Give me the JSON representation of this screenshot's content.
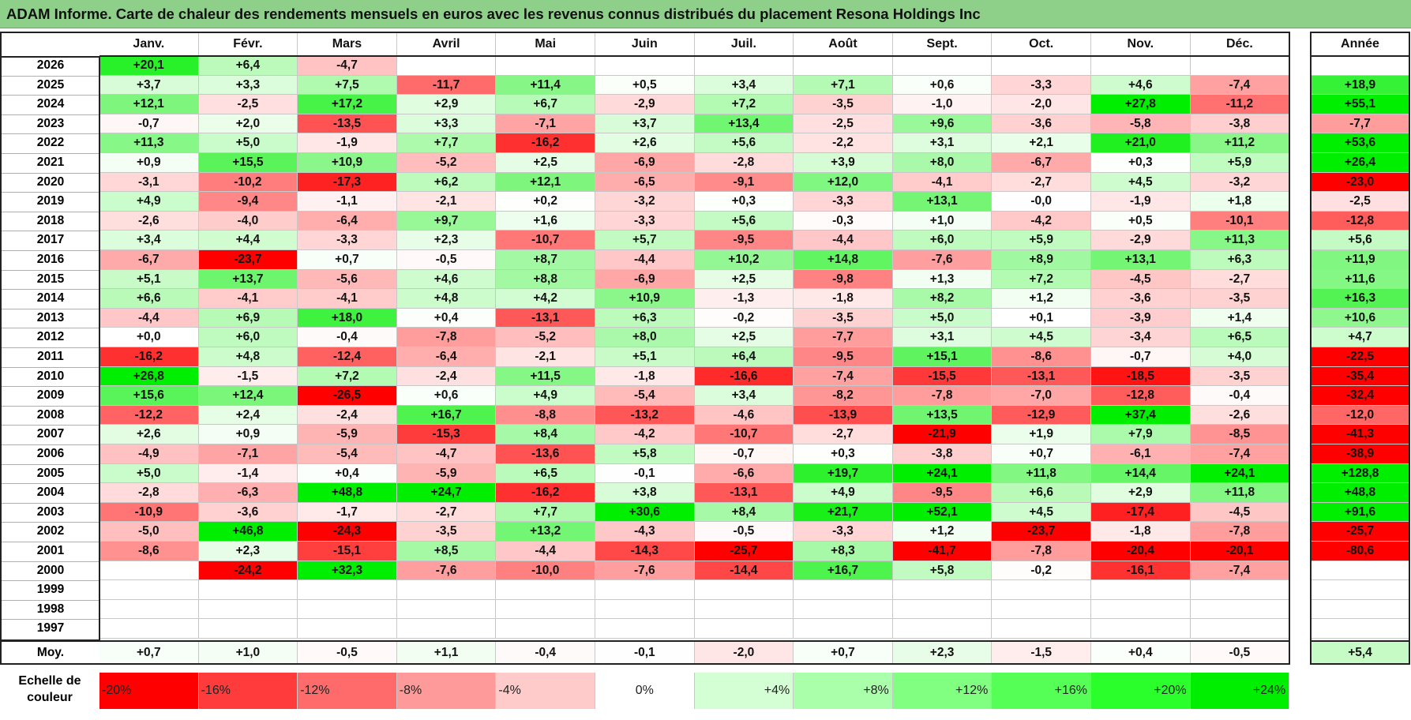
{
  "title": "ADAM Informe. Carte de chaleur des rendements mensuels en euros avec les revenus connus distribués du placement Resona Holdings Inc",
  "chart_data": {
    "type": "heatmap",
    "title": "ADAM Informe. Carte de chaleur des rendements mensuels en euros avec les revenus connus distribués du placement Resona Holdings Inc",
    "columns": [
      "Janv.",
      "Févr.",
      "Mars",
      "Avril",
      "Mai",
      "Juin",
      "Juil.",
      "Août",
      "Sept.",
      "Oct.",
      "Nov.",
      "Déc."
    ],
    "year_column_label": "Année",
    "rows": [
      {
        "year": "2026",
        "values": [
          "+20,1",
          "+6,4",
          "-4,7",
          "",
          "",
          "",
          "",
          "",
          "",
          "",
          "",
          ""
        ],
        "annual": ""
      },
      {
        "year": "2025",
        "values": [
          "+3,7",
          "+3,3",
          "+7,5",
          "-11,7",
          "+11,4",
          "+0,5",
          "+3,4",
          "+7,1",
          "+0,6",
          "-3,3",
          "+4,6",
          "-7,4"
        ],
        "annual": "+18,9"
      },
      {
        "year": "2024",
        "values": [
          "+12,1",
          "-2,5",
          "+17,2",
          "+2,9",
          "+6,7",
          "-2,9",
          "+7,2",
          "-3,5",
          "-1,0",
          "-2,0",
          "+27,8",
          "-11,2"
        ],
        "annual": "+55,1"
      },
      {
        "year": "2023",
        "values": [
          "-0,7",
          "+2,0",
          "-13,5",
          "+3,3",
          "-7,1",
          "+3,7",
          "+13,4",
          "-2,5",
          "+9,6",
          "-3,6",
          "-5,8",
          "-3,8"
        ],
        "annual": "-7,7"
      },
      {
        "year": "2022",
        "values": [
          "+11,3",
          "+5,0",
          "-1,9",
          "+7,7",
          "-16,2",
          "+2,6",
          "+5,6",
          "-2,2",
          "+3,1",
          "+2,1",
          "+21,0",
          "+11,2"
        ],
        "annual": "+53,6"
      },
      {
        "year": "2021",
        "values": [
          "+0,9",
          "+15,5",
          "+10,9",
          "-5,2",
          "+2,5",
          "-6,9",
          "-2,8",
          "+3,9",
          "+8,0",
          "-6,7",
          "+0,3",
          "+5,9"
        ],
        "annual": "+26,4"
      },
      {
        "year": "2020",
        "values": [
          "-3,1",
          "-10,2",
          "-17,3",
          "+6,2",
          "+12,1",
          "-6,5",
          "-9,1",
          "+12,0",
          "-4,1",
          "-2,7",
          "+4,5",
          "-3,2"
        ],
        "annual": "-23,0"
      },
      {
        "year": "2019",
        "values": [
          "+4,9",
          "-9,4",
          "-1,1",
          "-2,1",
          "+0,2",
          "-3,2",
          "+0,3",
          "-3,3",
          "+13,1",
          "-0,0",
          "-1,9",
          "+1,8"
        ],
        "annual": "-2,5"
      },
      {
        "year": "2018",
        "values": [
          "-2,6",
          "-4,0",
          "-6,4",
          "+9,7",
          "+1,6",
          "-3,3",
          "+5,6",
          "-0,3",
          "+1,0",
          "-4,2",
          "+0,5",
          "-10,1"
        ],
        "annual": "-12,8"
      },
      {
        "year": "2017",
        "values": [
          "+3,4",
          "+4,4",
          "-3,3",
          "+2,3",
          "-10,7",
          "+5,7",
          "-9,5",
          "-4,4",
          "+6,0",
          "+5,9",
          "-2,9",
          "+11,3"
        ],
        "annual": "+5,6"
      },
      {
        "year": "2016",
        "values": [
          "-6,7",
          "-23,7",
          "+0,7",
          "-0,5",
          "+8,7",
          "-4,4",
          "+10,2",
          "+14,8",
          "-7,6",
          "+8,9",
          "+13,1",
          "+6,3"
        ],
        "annual": "+11,9"
      },
      {
        "year": "2015",
        "values": [
          "+5,1",
          "+13,7",
          "-5,6",
          "+4,6",
          "+8,8",
          "-6,9",
          "+2,5",
          "-9,8",
          "+1,3",
          "+7,2",
          "-4,5",
          "-2,7"
        ],
        "annual": "+11,6"
      },
      {
        "year": "2014",
        "values": [
          "+6,6",
          "-4,1",
          "-4,1",
          "+4,8",
          "+4,2",
          "+10,9",
          "-1,3",
          "-1,8",
          "+8,2",
          "+1,2",
          "-3,6",
          "-3,5"
        ],
        "annual": "+16,3"
      },
      {
        "year": "2013",
        "values": [
          "-4,4",
          "+6,9",
          "+18,0",
          "+0,4",
          "-13,1",
          "+6,3",
          "-0,2",
          "-3,5",
          "+5,0",
          "+0,1",
          "-3,9",
          "+1,4"
        ],
        "annual": "+10,6"
      },
      {
        "year": "2012",
        "values": [
          "+0,0",
          "+6,0",
          "-0,4",
          "-7,8",
          "-5,2",
          "+8,0",
          "+2,5",
          "-7,7",
          "+3,1",
          "+4,5",
          "-3,4",
          "+6,5"
        ],
        "annual": "+4,7"
      },
      {
        "year": "2011",
        "values": [
          "-16,2",
          "+4,8",
          "-12,4",
          "-6,4",
          "-2,1",
          "+5,1",
          "+6,4",
          "-9,5",
          "+15,1",
          "-8,6",
          "-0,7",
          "+4,0"
        ],
        "annual": "-22,5"
      },
      {
        "year": "2010",
        "values": [
          "+26,8",
          "-1,5",
          "+7,2",
          "-2,4",
          "+11,5",
          "-1,8",
          "-16,6",
          "-7,4",
          "-15,5",
          "-13,1",
          "-18,5",
          "-3,5"
        ],
        "annual": "-35,4"
      },
      {
        "year": "2009",
        "values": [
          "+15,6",
          "+12,4",
          "-26,5",
          "+0,6",
          "+4,9",
          "-5,4",
          "+3,4",
          "-8,2",
          "-7,8",
          "-7,0",
          "-12,8",
          "-0,4"
        ],
        "annual": "-32,4"
      },
      {
        "year": "2008",
        "values": [
          "-12,2",
          "+2,4",
          "-2,4",
          "+16,7",
          "-8,8",
          "-13,2",
          "-4,6",
          "-13,9",
          "+13,5",
          "-12,9",
          "+37,4",
          "-2,6"
        ],
        "annual": "-12,0"
      },
      {
        "year": "2007",
        "values": [
          "+2,6",
          "+0,9",
          "-5,9",
          "-15,3",
          "+8,4",
          "-4,2",
          "-10,7",
          "-2,7",
          "-21,9",
          "+1,9",
          "+7,9",
          "-8,5"
        ],
        "annual": "-41,3"
      },
      {
        "year": "2006",
        "values": [
          "-4,9",
          "-7,1",
          "-5,4",
          "-4,7",
          "-13,6",
          "+5,8",
          "-0,7",
          "+0,3",
          "-3,8",
          "+0,7",
          "-6,1",
          "-7,4"
        ],
        "annual": "-38,9"
      },
      {
        "year": "2005",
        "values": [
          "+5,0",
          "-1,4",
          "+0,4",
          "-5,9",
          "+6,5",
          "-0,1",
          "-6,6",
          "+19,7",
          "+24,1",
          "+11,8",
          "+14,4",
          "+24,1"
        ],
        "annual": "+128,8"
      },
      {
        "year": "2004",
        "values": [
          "-2,8",
          "-6,3",
          "+48,8",
          "+24,7",
          "-16,2",
          "+3,8",
          "-13,1",
          "+4,9",
          "-9,5",
          "+6,6",
          "+2,9",
          "+11,8"
        ],
        "annual": "+48,8"
      },
      {
        "year": "2003",
        "values": [
          "-10,9",
          "-3,6",
          "-1,7",
          "-2,7",
          "+7,7",
          "+30,6",
          "+8,4",
          "+21,7",
          "+52,1",
          "+4,5",
          "-17,4",
          "-4,5"
        ],
        "annual": "+91,6"
      },
      {
        "year": "2002",
        "values": [
          "-5,0",
          "+46,8",
          "-24,3",
          "-3,5",
          "+13,2",
          "-4,3",
          "-0,5",
          "-3,3",
          "+1,2",
          "-23,7",
          "-1,8",
          "-7,8"
        ],
        "annual": "-25,7"
      },
      {
        "year": "2001",
        "values": [
          "-8,6",
          "+2,3",
          "-15,1",
          "+8,5",
          "-4,4",
          "-14,3",
          "-25,7",
          "+8,3",
          "-41,7",
          "-7,8",
          "-20,4",
          "-20,1"
        ],
        "annual": "-80,6"
      },
      {
        "year": "2000",
        "values": [
          "",
          "-24,2",
          "+32,3",
          "-7,6",
          "-10,0",
          "-7,6",
          "-14,4",
          "+16,7",
          "+5,8",
          "-0,2",
          "-16,1",
          "-7,4"
        ],
        "annual": ""
      },
      {
        "year": "1999",
        "values": [
          "",
          "",
          "",
          "",
          "",
          "",
          "",
          "",
          "",
          "",
          "",
          ""
        ],
        "annual": ""
      },
      {
        "year": "1998",
        "values": [
          "",
          "",
          "",
          "",
          "",
          "",
          "",
          "",
          "",
          "",
          "",
          ""
        ],
        "annual": ""
      },
      {
        "year": "1997",
        "values": [
          "",
          "",
          "",
          "",
          "",
          "",
          "",
          "",
          "",
          "",
          "",
          ""
        ],
        "annual": ""
      }
    ],
    "average_row": {
      "label": "Moy.",
      "values": [
        "+0,7",
        "+1,0",
        "-0,5",
        "+1,1",
        "-0,4",
        "-0,1",
        "-2,0",
        "+0,7",
        "+2,3",
        "-1,5",
        "+0,4",
        "-0,5"
      ],
      "annual": "+5,4"
    },
    "color_scale": {
      "label": "Echelle de couleur",
      "steps": [
        {
          "label": "-20%",
          "value": -20,
          "color": "#ff0000"
        },
        {
          "label": "-16%",
          "value": -16,
          "color": "#ff3b3b"
        },
        {
          "label": "-12%",
          "value": -12,
          "color": "#ff6a6a"
        },
        {
          "label": "-8%",
          "value": -8,
          "color": "#ff9a9a"
        },
        {
          "label": "-4%",
          "value": -4,
          "color": "#ffcaca"
        },
        {
          "label": "0%",
          "value": 0,
          "color": "#ffffff"
        },
        {
          "label": "+4%",
          "value": 4,
          "color": "#d4ffd4"
        },
        {
          "label": "+8%",
          "value": 8,
          "color": "#aaffaa"
        },
        {
          "label": "+12%",
          "value": 12,
          "color": "#80ff80"
        },
        {
          "label": "+16%",
          "value": 16,
          "color": "#55ff55"
        },
        {
          "label": "+20%",
          "value": 20,
          "color": "#2bff2b"
        },
        {
          "label": "+24%",
          "value": 24,
          "color": "#00ee00"
        }
      ]
    }
  }
}
